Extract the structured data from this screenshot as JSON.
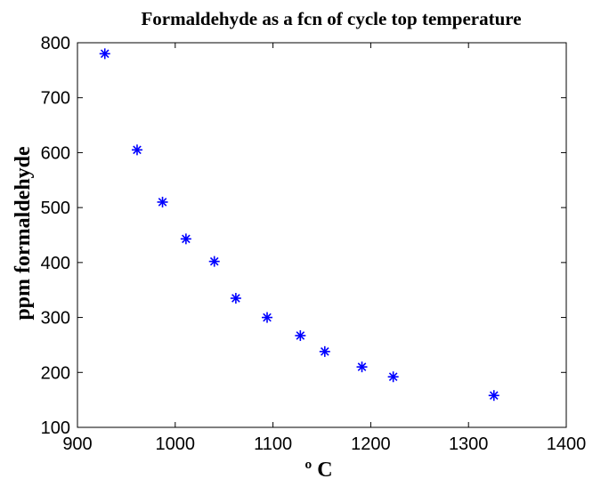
{
  "chart_data": {
    "type": "scatter",
    "title": "Formaldehyde as a fcn of cycle top temperature",
    "xlabel": "º C",
    "ylabel": "ppm formaldehyde",
    "xlim": [
      900,
      1400
    ],
    "ylim": [
      100,
      800
    ],
    "xticks": [
      900,
      1000,
      1100,
      1200,
      1300,
      1400
    ],
    "yticks": [
      100,
      200,
      300,
      400,
      500,
      600,
      700,
      800
    ],
    "grid": false,
    "marker": "asterisk",
    "series": [
      {
        "color": "#0000ff",
        "points": [
          {
            "x": 928,
            "y": 780
          },
          {
            "x": 961,
            "y": 605
          },
          {
            "x": 987,
            "y": 510
          },
          {
            "x": 1011,
            "y": 443
          },
          {
            "x": 1040,
            "y": 402
          },
          {
            "x": 1062,
            "y": 335
          },
          {
            "x": 1094,
            "y": 300
          },
          {
            "x": 1128,
            "y": 267
          },
          {
            "x": 1153,
            "y": 238
          },
          {
            "x": 1191,
            "y": 210
          },
          {
            "x": 1223,
            "y": 192
          },
          {
            "x": 1326,
            "y": 158
          }
        ]
      }
    ]
  }
}
